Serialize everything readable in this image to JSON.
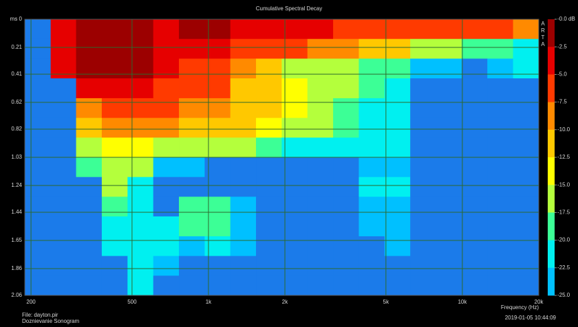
{
  "chart_data": {
    "type": "heatmap",
    "title": "Cumulative Spectral Decay",
    "xlabel": "Frequency (Hz)",
    "logo": "ARTA",
    "footer_left": [
      "File: dayton.pir",
      "Doznievanie Sonogram"
    ],
    "footer_right": "2019-01-05  10:44:09",
    "xscale": "log",
    "xlim": [
      189,
      20000
    ],
    "ylim": [
      0,
      2.06
    ],
    "xticks": [
      200,
      500,
      {
        "value": 1000,
        "label": "1k"
      },
      {
        "value": 2000,
        "label": "2k"
      },
      {
        "value": 5000,
        "label": "5k"
      },
      {
        "value": 10000,
        "label": "10k"
      },
      {
        "value": 20000,
        "label": "20k"
      }
    ],
    "yticks": [
      {
        "value": 0,
        "label": "ms 0"
      },
      0.21,
      0.41,
      0.62,
      0.82,
      1.03,
      1.24,
      1.44,
      1.65,
      1.86,
      2.06
    ],
    "grid": true,
    "grid_color": "#2d6a2d",
    "floor_color": "#1b7bea",
    "colorbar": {
      "ticks": [
        {
          "value": 0,
          "label": "-0.0 dB"
        },
        -2.5,
        {
          "value": -5,
          "label": "-5.0"
        },
        -7.5,
        {
          "value": -10,
          "label": "-10.0"
        },
        -12.5,
        {
          "value": -15,
          "label": "-15.0"
        },
        -17.5,
        {
          "value": -20,
          "label": "-20.0"
        },
        -22.5,
        {
          "value": -25,
          "label": "-25.0"
        }
      ],
      "colors": [
        "#9c0000",
        "#e60000",
        "#ff3a00",
        "#ff8a00",
        "#ffc800",
        "#ffff00",
        "#b4ff3c",
        "#3cff96",
        "#00f0f0",
        "#00c0ff"
      ]
    },
    "xbins": [
      189,
      239,
      301,
      380,
      480,
      606,
      765,
      966,
      1219,
      1539,
      1943,
      2453,
      3097,
      3910,
      4937,
      6233,
      7869,
      9935,
      12543,
      15836,
      20000
    ],
    "ybins": [
      0,
      0.147,
      0.294,
      0.441,
      0.589,
      0.736,
      0.883,
      1.03,
      1.177,
      1.324,
      1.471,
      1.619,
      1.766,
      1.913,
      2.06
    ],
    "z": [
      [
        -25,
        -3,
        -1,
        -1,
        -2,
        -3,
        -2,
        -2,
        -3,
        -3,
        -4,
        -4,
        -5,
        -5,
        -6,
        -7,
        -6,
        -6,
        -6,
        -8
      ],
      [
        -25,
        -3,
        -1,
        -1,
        -1,
        -3,
        -4,
        -4,
        -5,
        -6,
        -7,
        -8,
        -9,
        -10,
        -12,
        -15,
        -17,
        -18,
        -19,
        -20
      ],
      [
        -25,
        -4,
        -2,
        -2,
        -2,
        -4,
        -5,
        -6,
        -9,
        -12,
        -16,
        -17,
        -17,
        -18,
        -19,
        -23,
        -24,
        -25,
        -24,
        -22
      ],
      [
        -25,
        -25,
        -4,
        -4,
        -4,
        -5,
        -6,
        -7,
        -10,
        -11,
        -13,
        -15,
        -17,
        -19,
        -20,
        -25,
        -25,
        -25,
        -25,
        -25
      ],
      [
        -25,
        -25,
        -8,
        -6,
        -6,
        -7,
        -8,
        -9,
        -11,
        -12,
        -14,
        -15,
        -18,
        -20,
        -20,
        -25,
        -25,
        -25,
        -25,
        -25
      ],
      [
        -25,
        -25,
        -12,
        -9,
        -8,
        -9,
        -10,
        -11,
        -12,
        -14,
        -15,
        -17,
        -18,
        -20,
        -22,
        -25,
        -25,
        -25,
        -25,
        -25
      ],
      [
        -25,
        -25,
        -16,
        -14,
        -13,
        -15,
        -15,
        -16,
        -17,
        -19,
        -20,
        -22,
        -22,
        -22,
        -22,
        -25,
        -25,
        -25,
        -25,
        -25
      ],
      [
        -25,
        -25,
        -18,
        -16,
        -17,
        -23,
        -23,
        -25,
        -25,
        -25,
        -25,
        -25,
        -25,
        -23,
        -23,
        -25,
        -25,
        -25,
        -25,
        -25
      ],
      [
        -25,
        -25,
        -25,
        -16,
        -20,
        -25,
        -25,
        -25,
        -25,
        -25,
        -25,
        -25,
        -25,
        -22,
        -22,
        -25,
        -25,
        -25,
        -25,
        -25
      ],
      [
        -25,
        -25,
        -25,
        -18,
        -22,
        -25,
        -18,
        -18,
        -23,
        -25,
        -25,
        -25,
        -25,
        -23,
        -23,
        -25,
        -25,
        -25,
        -25,
        -25
      ],
      [
        -25,
        -25,
        -25,
        -20,
        -22,
        -22,
        -18,
        -18,
        -23,
        -25,
        -25,
        -25,
        -25,
        -24,
        -23,
        -25,
        -25,
        -25,
        -25,
        -25
      ],
      [
        -25,
        -25,
        -25,
        -22,
        -20,
        -22,
        -23,
        -22,
        -24,
        -25,
        -25,
        -25,
        -25,
        -25,
        -24,
        -25,
        -25,
        -25,
        -25,
        -25
      ],
      [
        -25,
        -25,
        -25,
        -25,
        -20,
        -24,
        -25,
        -25,
        -25,
        -25,
        -25,
        -25,
        -25,
        -25,
        -25,
        -25,
        -25,
        -25,
        -25,
        -25
      ],
      [
        -25,
        -25,
        -25,
        -25,
        -21,
        -25,
        -25,
        -25,
        -25,
        -25,
        -25,
        -25,
        -25,
        -25,
        -25,
        -25,
        -25,
        -25,
        -25,
        -25
      ]
    ]
  }
}
